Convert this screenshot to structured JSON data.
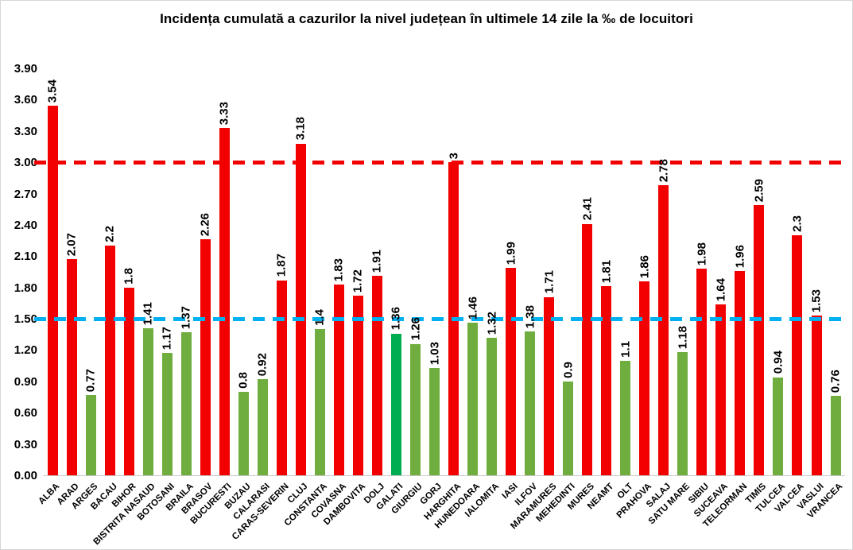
{
  "chart_data": {
    "type": "bar",
    "title": "Incidența cumulată a cazurilor la nivel județean în ultimele 14 zile la ‰ de locuitori",
    "xlabel": "",
    "ylabel": "",
    "categories": [
      "ALBA",
      "ARAD",
      "ARGES",
      "BACAU",
      "BIHOR",
      "BISTRITA NASAUD",
      "BOTOSANI",
      "BRAILA",
      "BRASOV",
      "BUCURESTI",
      "BUZAU",
      "CALARASI",
      "CARAS-SEVERIN",
      "CLUJ",
      "CONSTANTA",
      "COVASNA",
      "DAMBOVITA",
      "DOLJ",
      "GALATI",
      "GIURGIU",
      "GORJ",
      "HARGHITA",
      "HUNEDOARA",
      "IALOMITA",
      "IASI",
      "ILFOV",
      "MARAMURES",
      "MEHEDINTI",
      "MURES",
      "NEAMT",
      "OLT",
      "PRAHOVA",
      "SALAJ",
      "SATU MARE",
      "SIBIU",
      "SUCEAVA",
      "TELEORMAN",
      "TIMIS",
      "TULCEA",
      "VALCEA",
      "VASLUI",
      "VRANCEA"
    ],
    "values": [
      3.54,
      2.07,
      0.77,
      2.2,
      1.8,
      1.41,
      1.17,
      1.37,
      2.26,
      3.33,
      0.8,
      0.92,
      1.87,
      3.18,
      1.4,
      1.83,
      1.72,
      1.91,
      1.36,
      1.26,
      1.03,
      3,
      1.46,
      1.32,
      1.99,
      1.38,
      1.71,
      0.9,
      2.41,
      1.81,
      1.1,
      1.86,
      2.78,
      1.18,
      1.98,
      1.64,
      1.96,
      2.59,
      0.94,
      2.3,
      1.53,
      0.76
    ],
    "bar_color_keys": [
      "red",
      "red",
      "green",
      "red",
      "red",
      "green",
      "green",
      "green",
      "red",
      "red",
      "green",
      "green",
      "red",
      "red",
      "green",
      "red",
      "red",
      "red",
      "emerald",
      "green",
      "green",
      "red",
      "green",
      "green",
      "red",
      "green",
      "red",
      "green",
      "red",
      "red",
      "green",
      "red",
      "red",
      "green",
      "red",
      "red",
      "red",
      "red",
      "green",
      "red",
      "red",
      "green"
    ],
    "palette": {
      "red": "#f20000",
      "green": "#6fae3e",
      "emerald": "#00ad50",
      "blue_line": "#00b0f0",
      "red_line": "#f20000",
      "axis": "#c9c9c9",
      "text": "#000000"
    },
    "ylim": [
      0,
      3.9
    ],
    "ytick_labels": [
      "0.00",
      "0.30",
      "0.60",
      "0.90",
      "1.20",
      "1.50",
      "1.80",
      "2.10",
      "2.40",
      "2.70",
      "3.00",
      "3.30",
      "3.60",
      "3.90"
    ],
    "reference_lines": [
      {
        "value": 3.0,
        "color_key": "red_line",
        "style": "dashed"
      },
      {
        "value": 1.5,
        "color_key": "blue_line",
        "style": "dashed"
      }
    ],
    "grid": false,
    "legend": "none"
  }
}
